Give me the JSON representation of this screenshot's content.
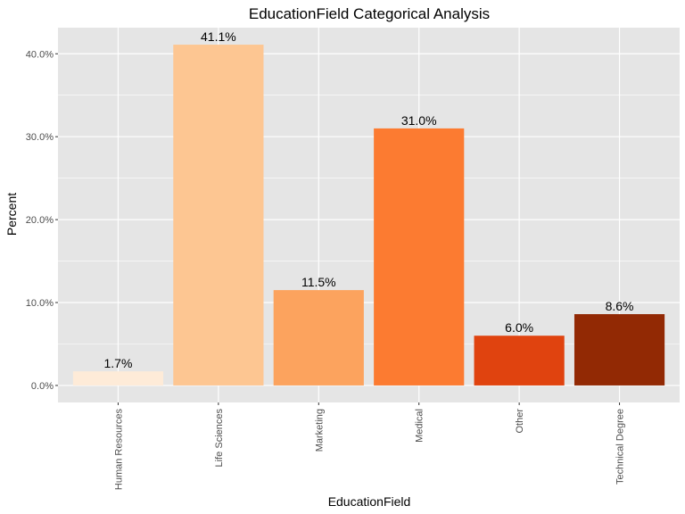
{
  "chart_data": {
    "type": "bar",
    "title": "EducationField Categorical Analysis",
    "xlabel": "EducationField",
    "ylabel": "Percent",
    "categories": [
      "Human Resources",
      "Life Sciences",
      "Marketing",
      "Medical",
      "Other",
      "Technical Degree"
    ],
    "values": [
      1.7,
      41.1,
      11.5,
      31.0,
      6.0,
      8.6
    ],
    "value_labels": [
      "1.7%",
      "41.1%",
      "11.5%",
      "31.0%",
      "6.0%",
      "8.6%"
    ],
    "colors": [
      "#feebd8",
      "#fdc692",
      "#fca35e",
      "#fc7b31",
      "#e0430f",
      "#922904"
    ],
    "yticks": [
      0,
      10,
      20,
      30,
      40
    ],
    "ytick_labels": [
      "0.0%",
      "10.0%",
      "20.0%",
      "30.0%",
      "40.0%"
    ],
    "ylim": [
      -2.05,
      43.15
    ],
    "grid": true,
    "panel_background": "#e5e5e5",
    "grid_color": "#ffffff"
  }
}
